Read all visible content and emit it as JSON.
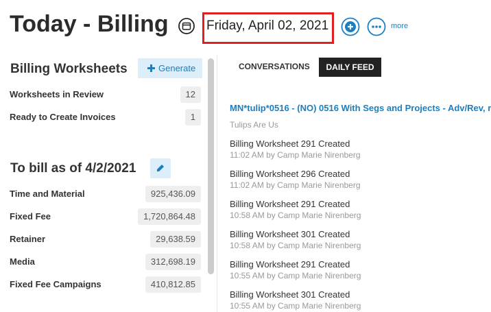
{
  "header": {
    "title": "Today - Billing",
    "date": "Friday, April 02, 2021",
    "more": "more"
  },
  "worksheets": {
    "title": "Billing Worksheets",
    "button": "Generate",
    "rows": [
      {
        "label": "Worksheets in Review",
        "value": "12"
      },
      {
        "label": "Ready to Create Invoices",
        "value": "1"
      }
    ]
  },
  "to_bill": {
    "title": "To bill as of 4/2/2021",
    "rows": [
      {
        "label": "Time and Material",
        "value": "925,436.09"
      },
      {
        "label": "Fixed Fee",
        "value": "1,720,864.48"
      },
      {
        "label": "Retainer",
        "value": "29,638.59"
      },
      {
        "label": "Media",
        "value": "312,698.19"
      },
      {
        "label": "Fixed Fee Campaigns",
        "value": "410,812.85"
      }
    ]
  },
  "feed": {
    "tabs": [
      "CONVERSATIONS",
      "DAILY FEED"
    ],
    "link": "MN*tulip*0516 - (NO) 0516 With Segs and Projects - Adv/Rev, r",
    "company": "Tulips Are Us",
    "items": [
      {
        "title": "Billing Worksheet 291 Created",
        "meta": "11:02 AM by Camp Marie Nirenberg"
      },
      {
        "title": "Billing Worksheet 296 Created",
        "meta": "11:02 AM by Camp Marie Nirenberg"
      },
      {
        "title": "Billing Worksheet 291 Created",
        "meta": "10:58 AM by Camp Marie Nirenberg"
      },
      {
        "title": "Billing Worksheet 301 Created",
        "meta": "10:58 AM by Camp Marie Nirenberg"
      },
      {
        "title": "Billing Worksheet 291 Created",
        "meta": "10:55 AM by Camp Marie Nirenberg"
      },
      {
        "title": "Billing Worksheet 301 Created",
        "meta": "10:55 AM by Camp Marie Nirenberg"
      }
    ]
  }
}
